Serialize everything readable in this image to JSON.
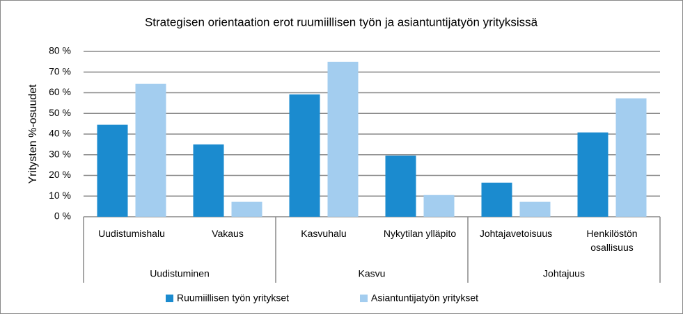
{
  "chart_data": {
    "type": "bar",
    "title": "Strategisen orientaation erot ruumiillisen työn ja asiantuntijatyön yrityksissä",
    "y_label": "Yritysten %-osuudet",
    "categories": [
      "Uudistumishalu",
      "Vakaus",
      "Kasvuhalu",
      "Nykytilan ylläpito",
      "Johtajavetoisuus",
      "Henkilöstön osallisuus"
    ],
    "groups": [
      "Uudistuminen",
      "Kasvu",
      "Johtajuus"
    ],
    "series": [
      {
        "name": "Ruumiillisen työn yritykset",
        "color": "#1b8bcf",
        "values": [
          44.5,
          35,
          59.2,
          29.6,
          16.5,
          40.8
        ]
      },
      {
        "name": "Asiantuntijatyön yritykset",
        "color": "#a3cdef",
        "values": [
          64.3,
          7.2,
          75,
          10.5,
          7.2,
          57.3
        ]
      }
    ],
    "ylim": [
      0,
      80
    ],
    "yticks": [
      {
        "value": 0,
        "label": "0 %"
      },
      {
        "value": 10,
        "label": "10 %"
      },
      {
        "value": 20,
        "label": "20 %"
      },
      {
        "value": 30,
        "label": "30 %"
      },
      {
        "value": 40,
        "label": "40 %"
      },
      {
        "value": 50,
        "label": "50 %"
      },
      {
        "value": 60,
        "label": "60 %"
      },
      {
        "value": 70,
        "label": "70 %"
      },
      {
        "value": 80,
        "label": "80 %"
      }
    ],
    "grid": true
  }
}
